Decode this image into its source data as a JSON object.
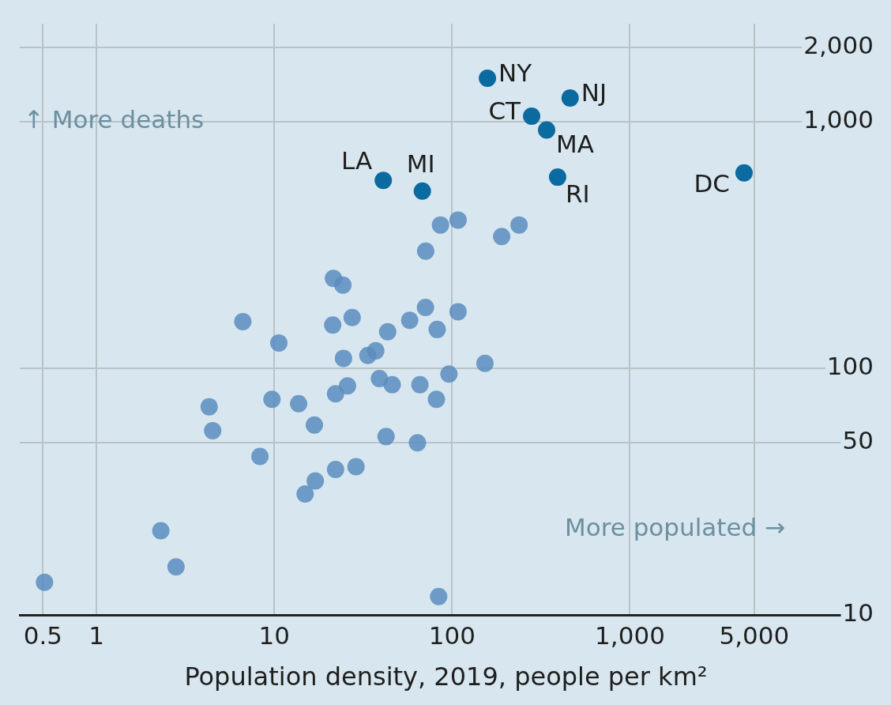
{
  "chart_data": {
    "type": "scatter",
    "xlabel": "Population density, 2019, people per km²",
    "log": "xy",
    "grid": true,
    "legend": false,
    "marker": "circle",
    "xlim": [
      0.37,
      23000
    ],
    "xticks": [
      0.5,
      1,
      10,
      100,
      {
        "value": 1000,
        "label": "1,000"
      },
      {
        "value": 5000,
        "label": "5,000"
      }
    ],
    "ylim": [
      10,
      2500
    ],
    "yticks": [
      10,
      50,
      100,
      {
        "value": 1000,
        "label": "1,000"
      },
      {
        "value": 2000,
        "label": "2,000"
      }
    ],
    "series": [
      {
        "color": "#5b8cbe",
        "x": [
          86,
          108,
          71,
          190,
          238,
          21.5,
          24.3,
          6.65,
          21.3,
          27.4,
          43.4,
          57.7,
          70.8,
          82.4,
          108,
          10.6,
          24.5,
          33.6,
          37.2,
          153,
          96,
          39,
          46,
          65.9,
          25.8,
          22.1,
          81.6,
          9.7,
          13.7,
          4.3,
          4.5,
          16.8,
          42.5,
          63.8,
          8.3,
          22.1,
          28.8,
          17,
          14.9,
          2.3,
          2.8,
          0.51,
          84
        ],
        "values": [
          382,
          400,
          299,
          343,
          382,
          232,
          218,
          155,
          150,
          161,
          141,
          157,
          177,
          144,
          170,
          127,
          110,
          113,
          118,
          105,
          95,
          91,
          86,
          86,
          85,
          79,
          75,
          75,
          72,
          70,
          56,
          59,
          53,
          50,
          44,
          39,
          40,
          35,
          31,
          22,
          15.7,
          13.6,
          11.9
        ]
      },
      {
        "color": "#0b6a9f",
        "x": [
          158,
          461,
          280,
          340,
          392,
          4385,
          41,
          68
        ],
        "values": [
          1503,
          1250,
          1054,
          927,
          597,
          621,
          579,
          524
        ]
      }
    ],
    "annotations": [
      {
        "text": "NY",
        "x": 158,
        "y": 1503
      },
      {
        "text": "NJ",
        "x": 461,
        "y": 1250
      },
      {
        "text": "CT",
        "x": 280,
        "y": 1054
      },
      {
        "text": "MA",
        "x": 340,
        "y": 927
      },
      {
        "text": "RI",
        "x": 392,
        "y": 597
      },
      {
        "text": "DC",
        "x": 4385,
        "y": 621
      },
      {
        "text": "LA",
        "x": 41,
        "y": 579
      },
      {
        "text": "MI",
        "x": 68,
        "y": 524
      },
      "↑ More deaths",
      "More populated →"
    ]
  }
}
